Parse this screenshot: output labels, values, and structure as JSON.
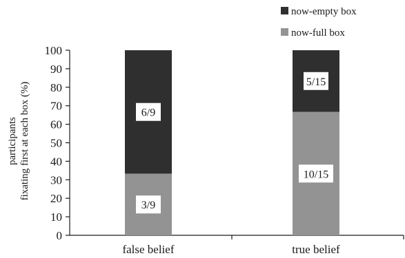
{
  "chart_data": {
    "type": "bar",
    "stacked": true,
    "categories": [
      "false belief",
      "true belief"
    ],
    "series": [
      {
        "name": "now-full box",
        "values": [
          33.3,
          66.7
        ],
        "labels": [
          "3/9",
          "10/15"
        ],
        "color": "#939393"
      },
      {
        "name": "now-empty box",
        "values": [
          66.7,
          33.3
        ],
        "labels": [
          "6/9",
          "5/15"
        ],
        "color": "#2f2f2f"
      }
    ],
    "ylabel": [
      "participants",
      "fixating first at each box (%)"
    ],
    "ylim": [
      0,
      100
    ],
    "yticks": [
      "0",
      "10",
      "20",
      "30",
      "40",
      "50",
      "60",
      "70",
      "80",
      "90",
      "100"
    ],
    "grid": false,
    "legend": {
      "placement": "top-right",
      "order": [
        "now-empty box",
        "now-full box"
      ]
    }
  }
}
